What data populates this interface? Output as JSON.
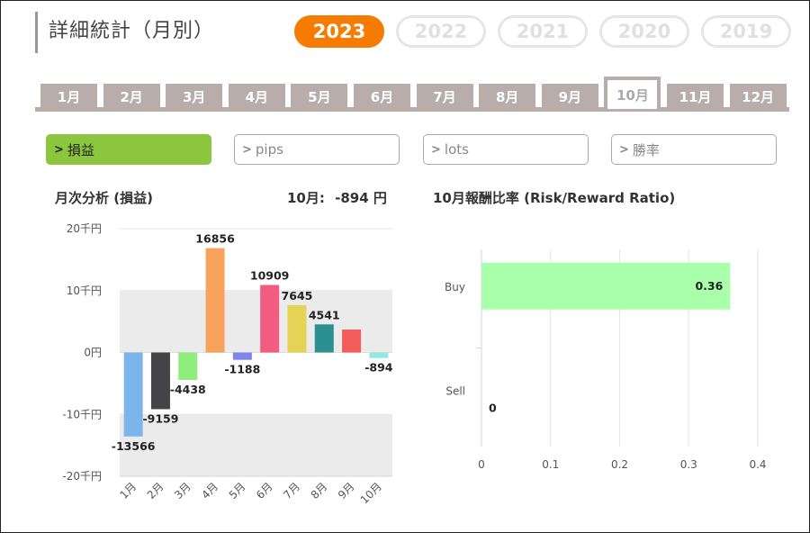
{
  "header": {
    "title": "詳細統計（月別）"
  },
  "years": [
    {
      "label": "2023",
      "active": true
    },
    {
      "label": "2022",
      "active": false
    },
    {
      "label": "2021",
      "active": false
    },
    {
      "label": "2020",
      "active": false
    },
    {
      "label": "2019",
      "active": false
    }
  ],
  "months": [
    {
      "label": "1月",
      "active": false
    },
    {
      "label": "2月",
      "active": false
    },
    {
      "label": "3月",
      "active": false
    },
    {
      "label": "4月",
      "active": false
    },
    {
      "label": "5月",
      "active": false
    },
    {
      "label": "6月",
      "active": false
    },
    {
      "label": "7月",
      "active": false
    },
    {
      "label": "8月",
      "active": false
    },
    {
      "label": "9月",
      "active": false
    },
    {
      "label": "10月",
      "active": true
    },
    {
      "label": "11月",
      "active": false
    },
    {
      "label": "12月",
      "active": false
    }
  ],
  "categories": [
    {
      "label": "損益",
      "active": true
    },
    {
      "label": "pips",
      "active": false
    },
    {
      "label": "lots",
      "active": false
    },
    {
      "label": "勝率",
      "active": false
    }
  ],
  "colors": {
    "accent": "#f57c00",
    "active_category": "#8cc63f",
    "tab": "#b9adac",
    "rr_bar": "#aaffaa"
  },
  "monthly": {
    "title": "月次分析 (損益)",
    "summary_label": "10月:",
    "summary_value": "-894 円"
  },
  "ratio": {
    "title": "10月報酬比率 (Risk/Reward Ratio)"
  },
  "chart_data": [
    {
      "type": "bar",
      "categories": [
        "1月",
        "2月",
        "3月",
        "4月",
        "5月",
        "6月",
        "7月",
        "8月",
        "9月",
        "10月"
      ],
      "values": [
        -13566,
        -9159,
        -4438,
        16856,
        -1188,
        10909,
        7645,
        4541,
        3700,
        -894
      ],
      "data_labels": [
        "-13566",
        "-9159",
        "-4438",
        "16856",
        "-1188",
        "10909",
        "7645",
        "4541",
        "",
        "-894"
      ],
      "colors": [
        "#7cb5ec",
        "#434348",
        "#90ed7d",
        "#f7a35c",
        "#8085e9",
        "#f15c80",
        "#e4d354",
        "#2b908f",
        "#f45b5b",
        "#91e8e1"
      ],
      "ylim": [
        -20000,
        20000
      ],
      "ytick_values": [
        20000,
        10000,
        0,
        -10000,
        -20000
      ],
      "ytick_labels": [
        "20千円",
        "10千円",
        "0円",
        "-10千円",
        "-20千円"
      ],
      "bands": [
        [
          -10000,
          -20000
        ],
        [
          10000,
          0
        ]
      ]
    },
    {
      "type": "bar",
      "orientation": "horizontal",
      "categories": [
        "Buy",
        "Sell"
      ],
      "values": [
        0.36,
        0
      ],
      "data_labels": [
        "0.36",
        "0"
      ],
      "xlim": [
        0,
        0.4
      ],
      "xtick_values": [
        0,
        0.1,
        0.2,
        0.3,
        0.4
      ],
      "xtick_labels": [
        "0",
        "0.1",
        "0.2",
        "0.3",
        "0.4"
      ],
      "color": "#aaffaa"
    }
  ]
}
